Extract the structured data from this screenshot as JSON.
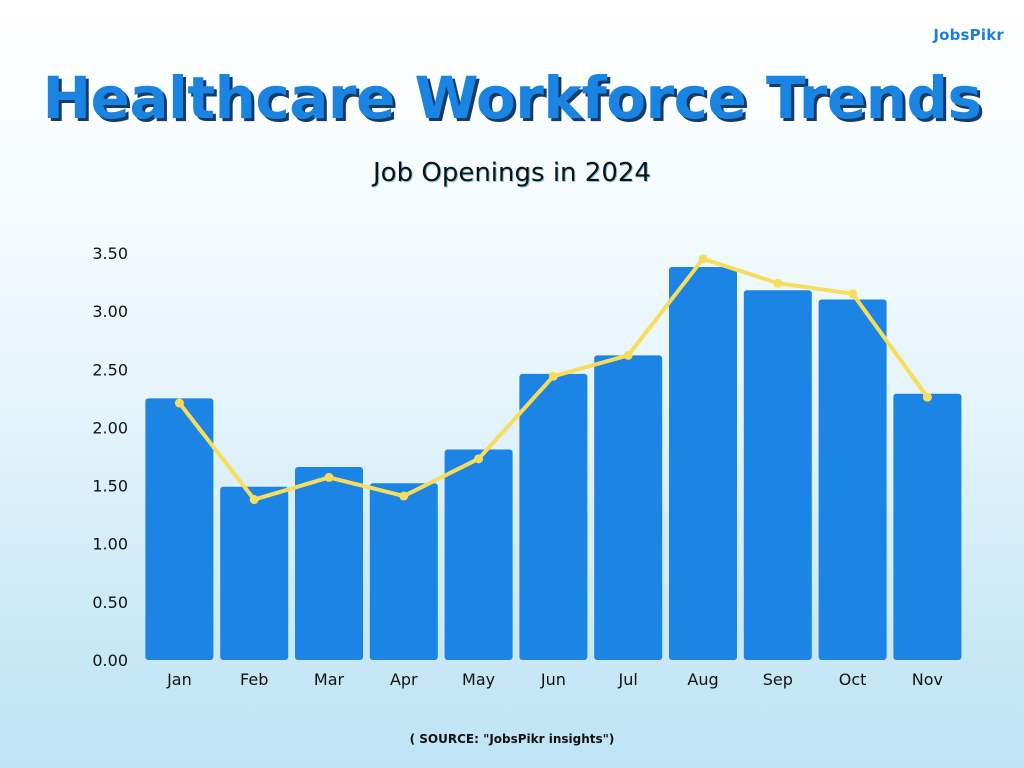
{
  "brand": {
    "logo_text": "JobsPikr"
  },
  "header": {
    "title": "Healthcare Workforce Trends",
    "subtitle": "Job Openings in 2024"
  },
  "footer": {
    "source": "( SOURCE: \"JobsPikr insights\")"
  },
  "colors": {
    "bar": "#1b84e4",
    "line": "#f7dd5c",
    "title": "#1a84e3"
  },
  "chart_data": {
    "type": "bar",
    "categories": [
      "Jan",
      "Feb",
      "Mar",
      "Apr",
      "May",
      "Jun",
      "Jul",
      "Aug",
      "Sep",
      "Oct",
      "Nov"
    ],
    "series": [
      {
        "type": "bar",
        "values": [
          2.25,
          1.49,
          1.66,
          1.52,
          1.81,
          2.46,
          2.62,
          3.38,
          3.18,
          3.1,
          2.29
        ]
      },
      {
        "type": "line",
        "values": [
          2.21,
          1.38,
          1.57,
          1.41,
          1.73,
          2.44,
          2.62,
          3.45,
          3.24,
          3.15,
          2.26
        ]
      }
    ],
    "yticks": [
      "0.00",
      "0.50",
      "1.00",
      "1.50",
      "2.00",
      "2.50",
      "3.00",
      "3.50"
    ],
    "ylim": [
      0,
      3.5
    ],
    "grid": false,
    "legend": "none"
  }
}
